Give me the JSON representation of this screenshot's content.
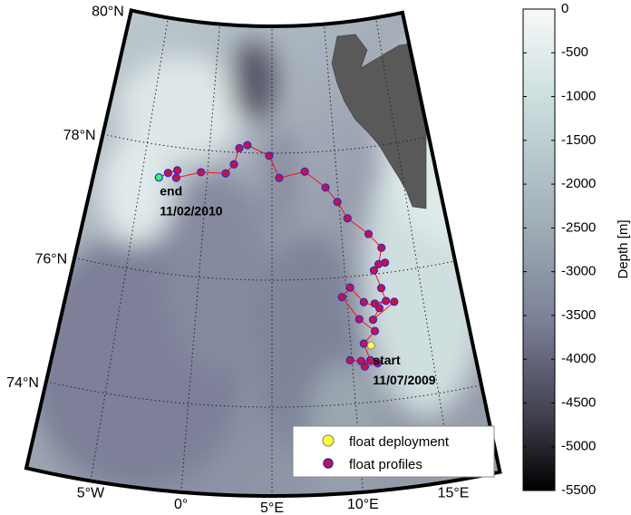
{
  "map": {
    "latlim": [
      72.6,
      80
    ],
    "lonlim": [
      -8.6,
      17.6
    ],
    "parallels": [
      {
        "value": 80,
        "label": "80°N"
      },
      {
        "value": 78,
        "label": "78°N"
      },
      {
        "value": 76,
        "label": "76°N"
      },
      {
        "value": 74,
        "label": "74°N"
      }
    ],
    "meridians": [
      {
        "value": -5,
        "label": "5°W"
      },
      {
        "value": 0,
        "label": "0°"
      },
      {
        "value": 5,
        "label": "5°E"
      },
      {
        "value": 10,
        "label": "10°E"
      },
      {
        "value": 15,
        "label": "15°E"
      }
    ],
    "track": {
      "name": "float profiles",
      "color": "#d0103a",
      "edge_color": "#2a2ad0",
      "line_color": "#ff1010",
      "lon": [
        10.76,
        11.57,
        9.88,
        10.56,
        11.14,
        10.83,
        11.62,
        10.69,
        9.68,
        10.27,
        11.1,
        12.08,
        11.58,
        13.1,
        11.81,
        12.56,
        12.36,
        12.01,
        12.83,
        12.38,
        12.72,
        11.93,
        10.53,
        9.89,
        9.08,
        7.55,
        5.56,
        4.78,
        3.02,
        2.38,
        2.01,
        1.41,
        -0.51,
        -2.36,
        -2.35,
        -3.03,
        -3.68
      ],
      "lat": [
        74.57,
        74.6,
        74.69,
        74.66,
        74.66,
        74.93,
        75.11,
        75.32,
        75.69,
        75.83,
        75.58,
        75.46,
        75.29,
        75.53,
        75.54,
        75.56,
        75.77,
        76.06,
        76.16,
        76.15,
        76.4,
        76.64,
        76.92,
        77.19,
        77.43,
        77.7,
        77.61,
        77.96,
        78.12,
        78.07,
        77.81,
        77.66,
        77.65,
        77.52,
        77.64,
        77.58,
        77.49
      ]
    },
    "deployment": {
      "name": "float deployment",
      "color": "#ffff33",
      "lon": 11.28,
      "lat": 74.89
    },
    "end_color": "#33ff66",
    "end": {
      "label": "end",
      "date": "11/02/2010"
    },
    "start": {
      "label": "start",
      "date": "11/07/2009"
    },
    "colorbar": {
      "label": "Depth [m]",
      "lim": [
        -5500,
        0
      ],
      "ticks": [
        0,
        -500,
        -1000,
        -1500,
        -2000,
        -2500,
        -3000,
        -3500,
        -4000,
        -4500,
        -5000,
        -5500
      ]
    }
  }
}
